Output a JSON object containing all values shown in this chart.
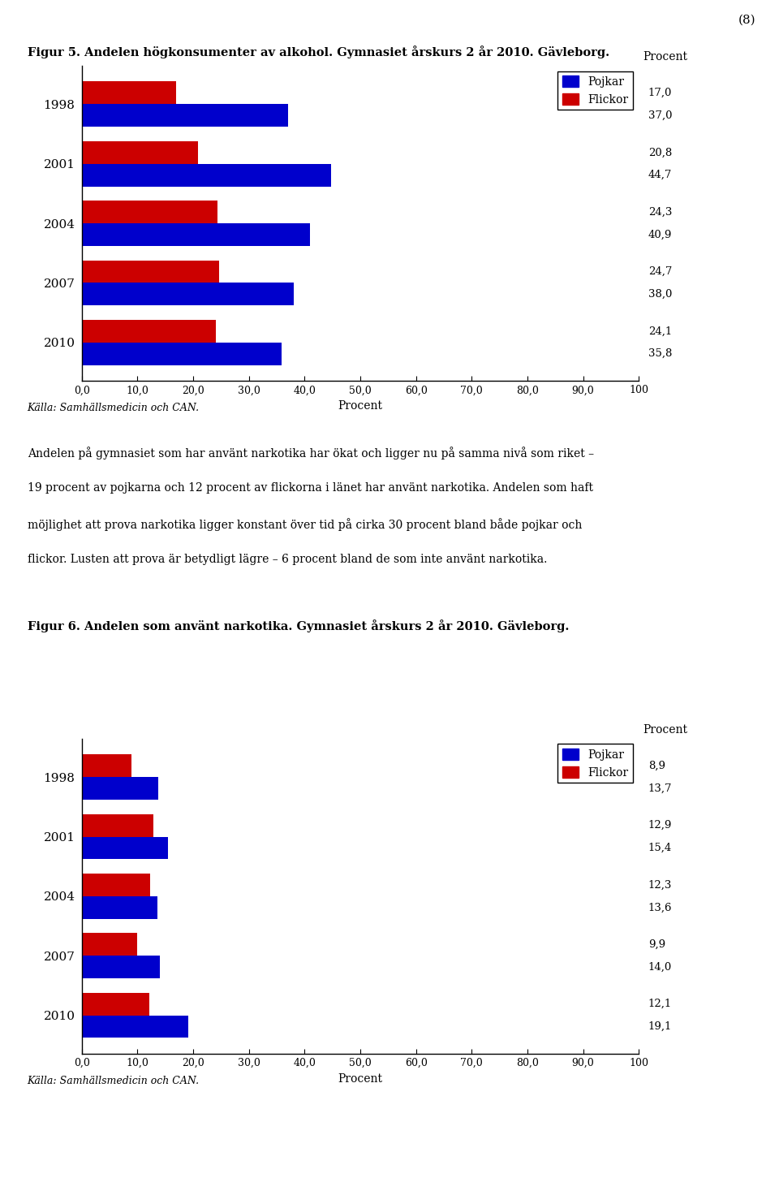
{
  "page_number": "(8)",
  "fig1_title": "Figur 5. Andelen högkonsumenter av alkohol. Gymnasiet årskurs 2 år 2010. Gävleborg.",
  "fig1_years": [
    "1998",
    "2001",
    "2004",
    "2007",
    "2010"
  ],
  "fig1_pojkar": [
    37.0,
    44.7,
    40.9,
    38.0,
    35.8
  ],
  "fig1_flickor": [
    17.0,
    20.8,
    24.3,
    24.7,
    24.1
  ],
  "fig1_pojkar_labels": [
    "37,0",
    "44,7",
    "40,9",
    "38,0",
    "35,8"
  ],
  "fig1_flickor_labels": [
    "17,0",
    "20,8",
    "24,3",
    "24,7",
    "24,1"
  ],
  "fig1_xlim": [
    0,
    100
  ],
  "fig1_xticks": [
    0.0,
    10.0,
    20.0,
    30.0,
    40.0,
    50.0,
    60.0,
    70.0,
    80.0,
    90.0,
    100.0
  ],
  "fig1_xtick_labels": [
    "0,0",
    "10,0",
    "20,0",
    "30,0",
    "40,0",
    "50,0",
    "60,0",
    "70,0",
    "80,0",
    "90,0",
    "100"
  ],
  "fig1_xlabel": "Procent",
  "fig1_procent_label": "Procent",
  "fig1_source": "Källa: Samhällsmedicin och CAN.",
  "middle_lines": [
    "Andelen på gymnasiet som har använt narkotika har ökat och ligger nu på samma nivå som riket –",
    "19 procent av pojkarna och 12 procent av flickorna i länet har använt narkotika. Andelen som haft",
    "möjlighet att prova narkotika ligger konstant över tid på cirka 30 procent bland både pojkar och",
    "flickor. Lusten att prova är betydligt lägre – 6 procent bland de som inte använt narkotika."
  ],
  "fig2_title": "Figur 6. Andelen som använt narkotika. Gymnasiet årskurs 2 år 2010. Gävleborg.",
  "fig2_years": [
    "1998",
    "2001",
    "2004",
    "2007",
    "2010"
  ],
  "fig2_pojkar": [
    13.7,
    15.4,
    13.6,
    14.0,
    19.1
  ],
  "fig2_flickor": [
    8.9,
    12.9,
    12.3,
    9.9,
    12.1
  ],
  "fig2_pojkar_labels": [
    "13,7",
    "15,4",
    "13,6",
    "14,0",
    "19,1"
  ],
  "fig2_flickor_labels": [
    "8,9",
    "12,9",
    "12,3",
    "9,9",
    "12,1"
  ],
  "fig2_xlim": [
    0,
    100
  ],
  "fig2_xticks": [
    0.0,
    10.0,
    20.0,
    30.0,
    40.0,
    50.0,
    60.0,
    70.0,
    80.0,
    90.0,
    100.0
  ],
  "fig2_xtick_labels": [
    "0,0",
    "10,0",
    "20,0",
    "30,0",
    "40,0",
    "50,0",
    "60,0",
    "70,0",
    "80,0",
    "90,0",
    "100"
  ],
  "fig2_xlabel": "Procent",
  "fig2_procent_label": "Procent",
  "fig2_source": "Källa: Samhällsmedicin och CAN.",
  "color_pojkar": "#0000cc",
  "color_flickor": "#cc0000",
  "background_color": "#ffffff",
  "bar_height": 0.38,
  "legend_pojkar": "Pojkar",
  "legend_flickor": "Flickor"
}
